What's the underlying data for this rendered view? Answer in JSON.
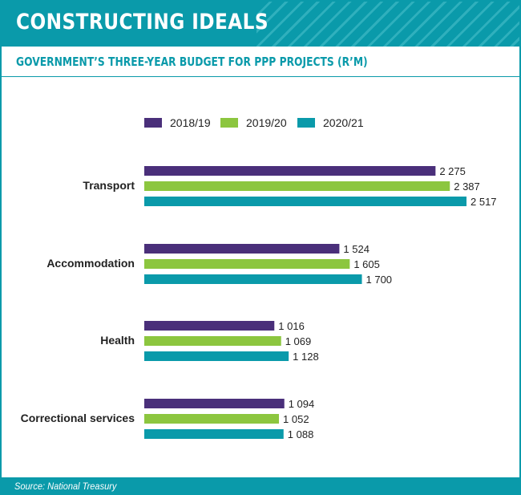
{
  "header": {
    "title": "CONSTRUCTING IDEALS",
    "subtitle": "GOVERNMENT’S THREE-YEAR BUDGET FOR PPP PROJECTS (R’M)"
  },
  "footer": {
    "source": "Source: National Treasury"
  },
  "colors": {
    "brand": "#0a9aaa",
    "s1": "#4a2f7a",
    "s2": "#8cc63f",
    "s3": "#0a9aaa"
  },
  "chart_data": {
    "type": "bar",
    "orientation": "horizontal",
    "categories": [
      "Transport",
      "Accommodation",
      "Health",
      "Correctional services"
    ],
    "series": [
      {
        "name": "2018/19",
        "values": [
          2275,
          1524,
          1016,
          1094
        ],
        "labels": [
          "2 275",
          "1 524",
          "1 016",
          "1 094"
        ]
      },
      {
        "name": "2019/20",
        "values": [
          2387,
          1605,
          1069,
          1052
        ],
        "labels": [
          "2 387",
          "1 605",
          "1 069",
          "1 052"
        ]
      },
      {
        "name": "2020/21",
        "values": [
          2517,
          1700,
          1128,
          1088
        ],
        "labels": [
          "2 517",
          "1 700",
          "1 128",
          "1 088"
        ]
      }
    ],
    "legend": "top",
    "grid": false
  }
}
